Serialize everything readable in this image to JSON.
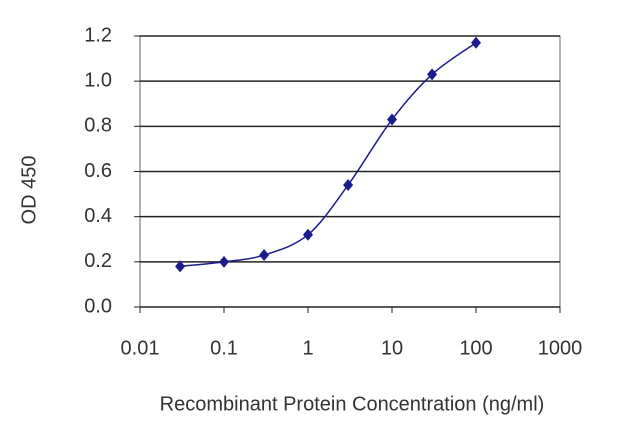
{
  "chart_data": {
    "type": "line",
    "log_x": true,
    "grid": true,
    "x_label": "Recombinant Protein Concentration (ng/ml)",
    "y_label": "OD 450",
    "x": [
      0.03,
      0.1,
      0.3,
      1,
      3,
      10,
      30,
      100
    ],
    "series": [
      {
        "color": "#1c1c8e",
        "values": [
          0.18,
          0.2,
          0.23,
          0.32,
          0.54,
          0.83,
          1.03,
          1.17
        ]
      }
    ],
    "xlim": [
      0.01,
      1000
    ],
    "xticks": [
      0.01,
      0.1,
      1,
      10,
      100,
      1000
    ],
    "ylim": [
      0,
      1.2
    ],
    "yticks": [
      {
        "value": 0,
        "label": "0.0"
      },
      0.2,
      0.4,
      0.6,
      0.8,
      {
        "value": 1,
        "label": "1.0"
      },
      1.2
    ]
  }
}
